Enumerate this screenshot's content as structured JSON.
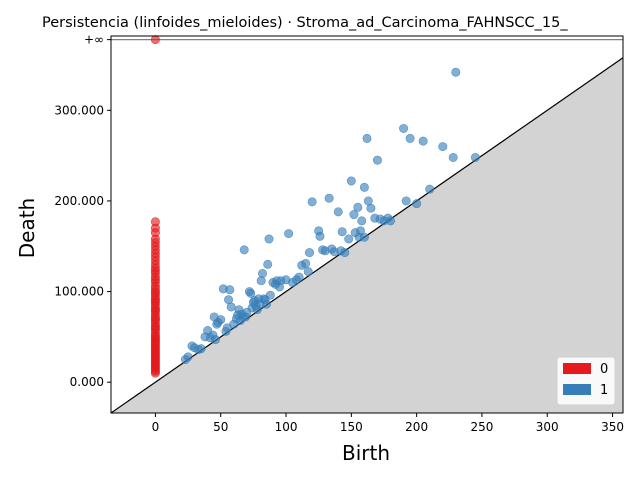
{
  "chart_data": {
    "type": "scatter",
    "title": "Persistencia (linfoides_mieloides) · Stroma_ad_Carcinoma_FAHNSCC_15_",
    "xlabel": "Birth",
    "ylabel": "Death",
    "xlim": [
      -34,
      358
    ],
    "ylim": [
      -34,
      382
    ],
    "x_ticks": [
      0,
      50,
      100,
      150,
      200,
      250,
      300,
      350
    ],
    "x_tick_labels": [
      "0",
      "50",
      "100",
      "150",
      "200",
      "250",
      "300",
      "350"
    ],
    "y_ticks": [
      0,
      100,
      200,
      300
    ],
    "y_tick_labels": [
      "0.000",
      "100.000",
      "200.000",
      "300.000"
    ],
    "infinity_label": "+∞",
    "infinity_value": 378,
    "legend_position": "bottom-right",
    "diagonal": true,
    "series": [
      {
        "name": "0",
        "color": "#e41a1c",
        "x": [
          0,
          0,
          0,
          0,
          0,
          0,
          0,
          0,
          0,
          0,
          0,
          0,
          0,
          0,
          0,
          0,
          0,
          0,
          0,
          0,
          0,
          0,
          0,
          0,
          0,
          0,
          0,
          0,
          0,
          0,
          0,
          0,
          0,
          0,
          0,
          0,
          0,
          0,
          0,
          0,
          0,
          0,
          0,
          0,
          0,
          0,
          0,
          0,
          0,
          0,
          0,
          0,
          0,
          0,
          0,
          0,
          0,
          0,
          0,
          0
        ],
        "y": [
          10,
          12,
          14,
          16,
          18,
          20,
          22,
          24,
          26,
          28,
          30,
          32,
          34,
          36,
          38,
          40,
          42,
          44,
          46,
          48,
          50,
          52,
          55,
          58,
          60,
          62,
          65,
          68,
          70,
          72,
          75,
          78,
          80,
          82,
          85,
          88,
          90,
          92,
          95,
          98,
          100,
          103,
          106,
          110,
          113,
          116,
          120,
          123,
          126,
          130,
          134,
          138,
          142,
          146,
          150,
          154,
          158,
          165,
          170,
          177
        ]
      },
      {
        "name": "0",
        "color": "#e41a1c",
        "x": [
          0
        ],
        "y": [
          378
        ]
      },
      {
        "name": "1",
        "color": "#377eb8",
        "x": [
          23,
          25,
          28,
          30,
          33,
          35,
          38,
          40,
          42,
          44,
          45,
          46,
          47,
          48,
          50,
          52,
          54,
          55,
          56,
          57,
          58,
          60,
          62,
          63,
          64,
          65,
          66,
          67,
          68,
          69,
          70,
          72,
          73,
          74,
          75,
          76,
          77,
          78,
          79,
          80,
          81,
          82,
          83,
          84,
          85,
          86,
          87,
          88,
          90,
          92,
          93,
          95,
          96,
          100,
          102,
          105,
          108,
          110,
          112,
          115,
          117,
          118,
          120,
          125,
          126,
          128,
          130,
          133,
          135,
          137,
          140,
          142,
          143,
          145,
          148,
          150,
          152,
          153,
          155,
          156,
          157,
          158,
          160,
          162,
          163,
          165,
          168,
          170,
          172,
          175,
          178,
          190,
          192,
          195,
          200,
          205,
          210,
          220,
          228,
          230,
          245,
          160,
          180
        ],
        "y": [
          25,
          28,
          40,
          38,
          36,
          37,
          50,
          57,
          49,
          52,
          72,
          47,
          64,
          66,
          69,
          103,
          56,
          60,
          91,
          102,
          83,
          64,
          70,
          74,
          80,
          68,
          75,
          72,
          146,
          72,
          77,
          100,
          98,
          82,
          88,
          90,
          84,
          80,
          92,
          86,
          112,
          120,
          92,
          91,
          86,
          130,
          158,
          96,
          110,
          108,
          112,
          105,
          112,
          113,
          164,
          110,
          113,
          116,
          129,
          131,
          122,
          143,
          199,
          167,
          161,
          146,
          145,
          203,
          147,
          144,
          188,
          145,
          166,
          143,
          158,
          222,
          185,
          165,
          193,
          160,
          167,
          178,
          215,
          269,
          200,
          192,
          181,
          245,
          180,
          178,
          181,
          280,
          200,
          269,
          197,
          266,
          213,
          260,
          248,
          342,
          248,
          160,
          178
        ]
      }
    ]
  }
}
